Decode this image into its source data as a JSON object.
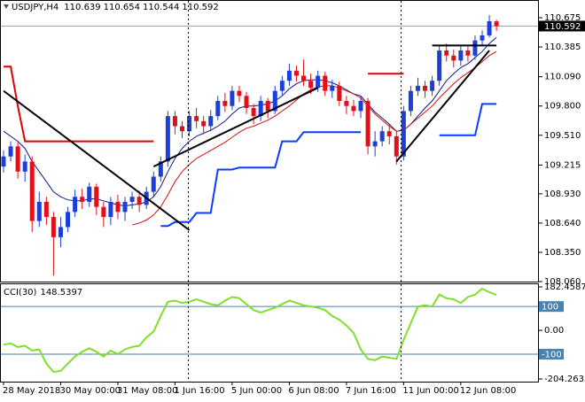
{
  "chart_data": [
    {
      "type": "candlestick",
      "symbol": "USDJPY,H4",
      "up_color": "#1c3fd8",
      "down_color": "#e0101a",
      "categories": [
        "28 May 2018",
        null,
        null,
        null,
        null,
        null,
        null,
        null,
        "30 May 00:00",
        null,
        null,
        null,
        null,
        null,
        null,
        null,
        "31 May 08:00",
        null,
        null,
        null,
        null,
        null,
        null,
        null,
        "1 Jun 16:00",
        null,
        null,
        null,
        null,
        null,
        null,
        null,
        "5 Jun 00:00",
        null,
        null,
        null,
        null,
        null,
        null,
        null,
        "6 Jun 08:00",
        null,
        null,
        null,
        null,
        null,
        null,
        null,
        "7 Jun 16:00",
        null,
        null,
        null,
        null,
        null,
        null,
        null,
        "11 Jun 00:00",
        null,
        null,
        null,
        null,
        null,
        null,
        null,
        "12 Jun 08:00",
        null,
        null,
        null,
        null,
        null
      ],
      "open": [
        109.2,
        109.3,
        109.4,
        109.15,
        109.25,
        108.66,
        108.85,
        108.7,
        108.5,
        108.6,
        108.75,
        108.9,
        108.85,
        109.0,
        108.8,
        108.7,
        108.85,
        108.75,
        108.85,
        108.9,
        108.82,
        108.95,
        109.1,
        109.25,
        109.7,
        109.6,
        109.55,
        109.7,
        109.65,
        109.6,
        109.7,
        109.85,
        109.8,
        109.95,
        109.9,
        109.78,
        109.7,
        109.85,
        109.75,
        109.95,
        110.05,
        110.15,
        110.1,
        110.05,
        109.98,
        110.1,
        109.95,
        110.0,
        109.85,
        109.8,
        109.75,
        109.85,
        109.4,
        109.45,
        109.55,
        109.5,
        109.3,
        109.75,
        109.95,
        110.0,
        109.95,
        110.05,
        110.35,
        110.3,
        110.25,
        110.35,
        110.3,
        110.45,
        110.5,
        110.639
      ],
      "high": [
        109.36,
        109.45,
        109.44,
        109.32,
        109.3,
        108.95,
        108.9,
        108.75,
        108.7,
        108.8,
        108.97,
        108.98,
        109.04,
        109.03,
        108.85,
        108.9,
        108.92,
        108.9,
        108.95,
        108.96,
        109.0,
        109.15,
        109.3,
        109.75,
        109.75,
        109.65,
        109.75,
        109.78,
        109.7,
        109.76,
        109.9,
        109.93,
        110.0,
        110.0,
        109.94,
        109.82,
        109.9,
        109.88,
        110.0,
        110.1,
        110.22,
        110.2,
        110.26,
        110.12,
        110.15,
        110.14,
        110.06,
        110.04,
        109.9,
        109.86,
        109.9,
        109.88,
        109.55,
        109.6,
        109.62,
        109.55,
        109.8,
        110.0,
        110.08,
        110.05,
        110.1,
        110.4,
        110.42,
        110.36,
        110.4,
        110.4,
        110.5,
        110.55,
        110.7,
        110.654
      ],
      "low": [
        109.14,
        109.25,
        109.08,
        109.05,
        108.55,
        108.6,
        108.62,
        108.12,
        108.4,
        108.55,
        108.7,
        108.78,
        108.8,
        108.72,
        108.6,
        108.62,
        108.68,
        108.66,
        108.78,
        108.75,
        108.78,
        108.9,
        109.05,
        109.2,
        109.52,
        109.48,
        109.5,
        109.58,
        109.52,
        109.55,
        109.66,
        109.74,
        109.76,
        109.84,
        109.72,
        109.62,
        109.65,
        109.68,
        109.72,
        109.9,
        110.0,
        110.04,
        110.0,
        109.92,
        109.94,
        109.9,
        109.88,
        109.8,
        109.72,
        109.7,
        109.68,
        109.32,
        109.3,
        109.4,
        109.42,
        109.22,
        109.26,
        109.7,
        109.9,
        109.88,
        109.9,
        110.0,
        110.24,
        110.18,
        110.2,
        110.24,
        110.26,
        110.4,
        110.48,
        110.544
      ],
      "close": [
        109.3,
        109.4,
        109.15,
        109.25,
        108.66,
        108.85,
        108.7,
        108.5,
        108.6,
        108.75,
        108.9,
        108.85,
        109.0,
        108.8,
        108.7,
        108.85,
        108.75,
        108.85,
        108.9,
        108.82,
        108.95,
        109.1,
        109.25,
        109.7,
        109.6,
        109.55,
        109.7,
        109.65,
        109.6,
        109.7,
        109.85,
        109.8,
        109.95,
        109.9,
        109.78,
        109.7,
        109.85,
        109.75,
        109.95,
        110.05,
        110.15,
        110.1,
        110.05,
        109.98,
        110.1,
        109.95,
        110.0,
        109.85,
        109.8,
        109.75,
        109.85,
        109.4,
        109.45,
        109.55,
        109.5,
        109.3,
        109.75,
        109.95,
        110.0,
        109.95,
        110.05,
        110.35,
        110.3,
        110.25,
        110.35,
        110.3,
        110.45,
        110.5,
        110.64,
        110.592
      ],
      "ylim": [
        108.06,
        110.833
      ],
      "yticks": [
        110.675,
        110.385,
        {
          "value": 110.09,
          "label": "110.090"
        },
        {
          "value": 109.8,
          "label": "109.800"
        },
        {
          "value": 109.51,
          "label": "109.510"
        },
        109.215,
        {
          "value": 108.93,
          "label": "108.930"
        },
        {
          "value": 108.64,
          "label": "108.640"
        },
        {
          "value": 108.35,
          "label": "108.350"
        },
        {
          "value": 108.06,
          "label": "108.060"
        }
      ],
      "grid": false,
      "price_line_color": "#9aa4b4",
      "indicators": [
        {
          "color": "#0a1a8c",
          "line_width": 1,
          "values": [
            109.55,
            109.5,
            109.45,
            109.38,
            109.25,
            109.15,
            109.05,
            108.95,
            108.9,
            108.87,
            108.86,
            108.86,
            108.88,
            108.88,
            108.86,
            108.84,
            108.82,
            108.81,
            108.82,
            108.83,
            108.85,
            108.9,
            109.0,
            109.15,
            109.28,
            109.38,
            109.45,
            109.5,
            109.53,
            109.56,
            109.6,
            109.65,
            109.72,
            109.78,
            109.8,
            109.8,
            109.81,
            109.82,
            109.85,
            109.9,
            109.97,
            110.02,
            110.05,
            110.06,
            110.06,
            110.05,
            110.03,
            110.0,
            109.96,
            109.92,
            109.9,
            109.82,
            109.74,
            109.68,
            109.62,
            109.55,
            109.56,
            109.62,
            109.7,
            109.78,
            109.85,
            109.95,
            110.05,
            110.12,
            110.18,
            110.22,
            110.28,
            110.34,
            110.42,
            110.48
          ]
        },
        {
          "color": "#d01010",
          "line_width": 1,
          "values": [
            null,
            null,
            null,
            null,
            null,
            null,
            null,
            null,
            null,
            null,
            null,
            null,
            null,
            null,
            null,
            null,
            null,
            null,
            108.62,
            108.64,
            108.67,
            108.72,
            108.8,
            108.92,
            109.05,
            109.15,
            109.22,
            109.28,
            109.32,
            109.36,
            109.4,
            109.44,
            109.49,
            109.54,
            109.58,
            109.6,
            109.63,
            109.66,
            109.7,
            109.75,
            109.8,
            109.86,
            109.92,
            109.96,
            109.99,
            110.0,
            110.0,
            109.98,
            109.95,
            109.92,
            109.88,
            109.8,
            109.72,
            109.66,
            109.6,
            109.55,
            109.56,
            109.62,
            109.68,
            109.74,
            109.8,
            109.88,
            109.95,
            110.02,
            110.08,
            110.13,
            110.18,
            110.24,
            110.3,
            110.34
          ]
        },
        {
          "color": "#e00000",
          "line_width": 2,
          "values": [
            110.19,
            110.19,
            109.8,
            109.45,
            109.45,
            109.45,
            109.45,
            109.45,
            109.45,
            109.45,
            109.45,
            109.45,
            109.45,
            109.45,
            109.45,
            109.45,
            109.45,
            109.45,
            109.45,
            109.45,
            109.45,
            109.45,
            null,
            null,
            null,
            null,
            null,
            null,
            null,
            null,
            null,
            null,
            null,
            null,
            null,
            null,
            null,
            null,
            null,
            null,
            null,
            null,
            null,
            null,
            null,
            null,
            null,
            null,
            null,
            null,
            null,
            110.12,
            110.12,
            110.12,
            110.12,
            110.12,
            110.12,
            null,
            null,
            null,
            null,
            null,
            null,
            null,
            null,
            null,
            null,
            null,
            null,
            null
          ]
        },
        {
          "color": "#0a3cff",
          "line_width": 2,
          "values": [
            null,
            null,
            null,
            null,
            null,
            null,
            null,
            null,
            null,
            null,
            null,
            null,
            null,
            null,
            null,
            null,
            null,
            null,
            null,
            null,
            null,
            null,
            108.61,
            108.61,
            108.65,
            108.65,
            108.65,
            108.74,
            108.74,
            108.74,
            109.17,
            109.17,
            109.17,
            109.19,
            109.19,
            109.19,
            109.19,
            109.19,
            109.19,
            109.45,
            109.45,
            109.45,
            109.54,
            109.54,
            109.54,
            109.54,
            109.54,
            109.54,
            109.54,
            109.54,
            109.54,
            null,
            null,
            null,
            null,
            null,
            null,
            null,
            null,
            null,
            null,
            109.51,
            109.51,
            109.51,
            109.51,
            109.51,
            109.51,
            109.82,
            109.82,
            109.82
          ]
        }
      ],
      "trendlines": [
        {
          "color": "#000000",
          "start": [
            0,
            109.95
          ],
          "end": [
            26,
            108.57
          ]
        },
        {
          "color": "#000000",
          "start": [
            21,
            109.2
          ],
          "end": [
            44,
            109.98
          ]
        },
        {
          "color": "#000000",
          "start": [
            55,
            109.25
          ],
          "end": [
            68,
            110.35
          ]
        },
        {
          "color": "#000000",
          "start": [
            60,
            110.4
          ],
          "end": [
            69,
            110.4
          ]
        }
      ]
    },
    {
      "type": "line",
      "title": "CCI(30)",
      "color": "#7fe02a",
      "values": [
        -60,
        -55,
        -70,
        -65,
        -85,
        -80,
        -140,
        -175,
        -170,
        -140,
        -110,
        -90,
        -75,
        -90,
        -110,
        -85,
        -100,
        -80,
        -70,
        -65,
        -30,
        -5,
        60,
        120,
        125,
        115,
        120,
        130,
        120,
        110,
        105,
        125,
        140,
        135,
        110,
        85,
        75,
        85,
        95,
        110,
        125,
        115,
        105,
        100,
        95,
        85,
        60,
        45,
        20,
        -10,
        -80,
        -120,
        -125,
        -110,
        -115,
        -120,
        -40,
        30,
        100,
        105,
        100,
        150,
        135,
        130,
        115,
        140,
        150,
        175,
        160,
        148.5397
      ],
      "ylim": [
        -204.2633,
        182.4587
      ],
      "yticks": [
        182.4587,
        {
          "value": 0,
          "label": "0.00"
        },
        -204.2633
      ],
      "levels": [
        100,
        -100
      ],
      "level_color": "#4682b4"
    }
  ]
}
